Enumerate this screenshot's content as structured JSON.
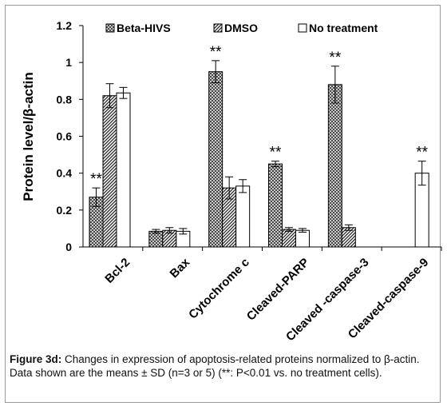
{
  "chart_data": {
    "type": "bar",
    "ylabel": "Protein level/β-actin",
    "xlabel": "",
    "ylim": [
      0,
      1.2
    ],
    "yticks": [
      "0",
      "0.2",
      "0.4",
      "0.6",
      "0.8",
      "1",
      "1.2"
    ],
    "grid": false,
    "legend_position": "top",
    "categories": [
      "Bcl-2",
      "Bax",
      "Cytochrome c",
      "Cleaved-PARP",
      "Cleaved -caspase-3",
      "Cleaved-caspase-9"
    ],
    "series": [
      {
        "name": "Beta-HIVS",
        "pattern": "crosshatch",
        "values": [
          0.27,
          0.085,
          0.95,
          0.45,
          0.88,
          null
        ],
        "errors": [
          0.05,
          0.01,
          0.06,
          0.015,
          0.1,
          null
        ]
      },
      {
        "name": "DMSO",
        "pattern": "diagonal",
        "values": [
          0.82,
          0.09,
          0.32,
          0.095,
          0.105,
          null
        ],
        "errors": [
          0.065,
          0.015,
          0.06,
          0.01,
          0.015,
          null
        ]
      },
      {
        "name": "No treatment",
        "pattern": "none",
        "values": [
          0.835,
          0.085,
          0.33,
          0.09,
          null,
          0.4
        ],
        "errors": [
          0.03,
          0.015,
          0.035,
          0.01,
          null,
          0.065
        ]
      }
    ],
    "annotations": [
      {
        "text": "**",
        "category": "Bcl-2",
        "series": "Beta-HIVS"
      },
      {
        "text": "**",
        "category": "Cytochrome c",
        "series": "Beta-HIVS"
      },
      {
        "text": "**",
        "category": "Cleaved-PARP",
        "series": "Beta-HIVS"
      },
      {
        "text": "**",
        "category": "Cleaved -caspase-3",
        "series": "Beta-HIVS"
      },
      {
        "text": "**",
        "category": "Cleaved-caspase-9",
        "series": "No treatment"
      }
    ],
    "colors": {
      "bar_fill": "#ffffff",
      "bar_pattern": "#222222",
      "axis": "#000000"
    }
  },
  "caption": {
    "label": "Figure 3d:",
    "text": " Changes in expression of apoptosis-related proteins normalized to β-actin. Data shown are the means ± SD (n=3 or 5) (**: P<0.01 vs. no treatment cells)."
  }
}
